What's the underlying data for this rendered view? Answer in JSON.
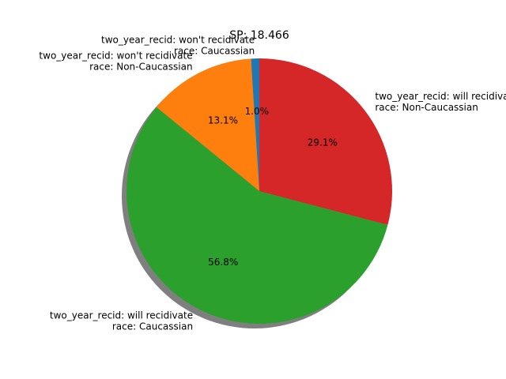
{
  "chart_data": {
    "type": "pie",
    "title": "SP: 18.466",
    "start_angle_deg": 90,
    "counterclock": true,
    "shadow": true,
    "slices": [
      {
        "label_lines": [
          "two_year_recid: won't recidivate",
          "race: Caucassian"
        ],
        "value": 1.0,
        "pct_label": "1.0%",
        "color": "#1f77b4"
      },
      {
        "label_lines": [
          "two_year_recid: won't recidivate",
          "race: Non-Caucassian"
        ],
        "value": 13.1,
        "pct_label": "13.1%",
        "color": "#ff7f0e"
      },
      {
        "label_lines": [
          "two_year_recid: will recidivate",
          "race: Caucassian"
        ],
        "value": 56.8,
        "pct_label": "56.8%",
        "color": "#2ca02c"
      },
      {
        "label_lines": [
          "two_year_recid: will recidivate",
          "race: Non-Caucassian"
        ],
        "value": 29.1,
        "pct_label": "29.1%",
        "color": "#d62728"
      }
    ]
  }
}
